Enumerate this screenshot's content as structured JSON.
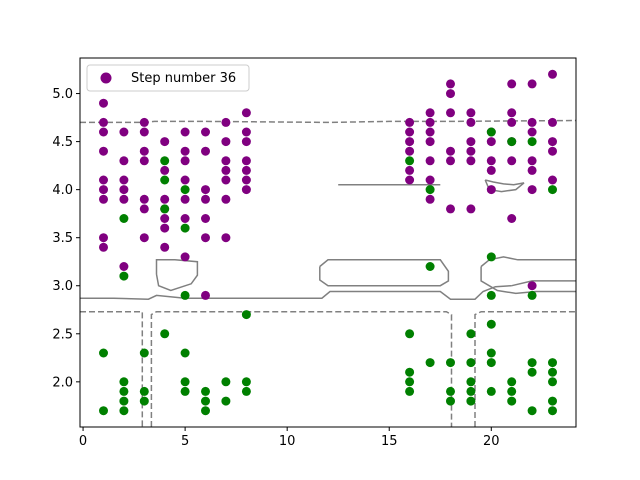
{
  "chart_data": {
    "type": "scatter",
    "legend": {
      "label": "Step number 36",
      "placement": "top-left"
    },
    "xlim": [
      -0.15,
      24.15
    ],
    "ylim": [
      1.53,
      5.37
    ],
    "xticks": [
      0,
      5,
      10,
      15,
      20
    ],
    "yticks": [
      2.0,
      2.5,
      3.0,
      3.5,
      4.0,
      4.5,
      5.0
    ],
    "ytick_labels": [
      "2.0",
      "2.5",
      "3.0",
      "3.5",
      "4.0",
      "4.5",
      "5.0"
    ],
    "colors": {
      "class_a": "#800080",
      "class_b": "#008000",
      "contour": "#808080",
      "axes": "#000000"
    },
    "series": [
      {
        "color_key": "class_a",
        "points": [
          [
            1,
            4.9
          ],
          [
            1,
            4.7
          ],
          [
            1,
            4.6
          ],
          [
            1,
            4.4
          ],
          [
            1,
            4.1
          ],
          [
            1,
            4.0
          ],
          [
            1,
            3.9
          ],
          [
            1,
            3.5
          ],
          [
            1,
            3.4
          ],
          [
            2,
            4.6
          ],
          [
            2,
            4.3
          ],
          [
            2,
            4.1
          ],
          [
            2,
            4.0
          ],
          [
            2,
            3.9
          ],
          [
            2,
            3.2
          ],
          [
            3,
            4.7
          ],
          [
            3,
            4.6
          ],
          [
            3,
            4.4
          ],
          [
            3,
            4.3
          ],
          [
            3,
            3.9
          ],
          [
            3,
            3.8
          ],
          [
            3,
            3.5
          ],
          [
            4,
            4.5
          ],
          [
            4,
            4.2
          ],
          [
            4,
            3.9
          ],
          [
            4,
            3.8
          ],
          [
            4,
            3.7
          ],
          [
            4,
            3.6
          ],
          [
            4,
            3.4
          ],
          [
            5,
            4.6
          ],
          [
            5,
            4.4
          ],
          [
            5,
            4.3
          ],
          [
            5,
            4.1
          ],
          [
            5,
            3.9
          ],
          [
            5,
            3.7
          ],
          [
            5,
            3.3
          ],
          [
            6,
            4.6
          ],
          [
            6,
            4.4
          ],
          [
            6,
            4.0
          ],
          [
            6,
            3.9
          ],
          [
            6,
            3.7
          ],
          [
            6,
            3.5
          ],
          [
            6,
            2.9
          ],
          [
            7,
            4.7
          ],
          [
            7,
            4.5
          ],
          [
            7,
            4.3
          ],
          [
            7,
            4.2
          ],
          [
            7,
            4.1
          ],
          [
            7,
            3.9
          ],
          [
            7,
            3.5
          ],
          [
            8,
            4.8
          ],
          [
            8,
            4.6
          ],
          [
            8,
            4.5
          ],
          [
            8,
            4.3
          ],
          [
            8,
            4.2
          ],
          [
            8,
            4.1
          ],
          [
            8,
            4.0
          ],
          [
            16,
            4.7
          ],
          [
            16,
            4.6
          ],
          [
            16,
            4.5
          ],
          [
            16,
            4.4
          ],
          [
            16,
            4.2
          ],
          [
            16,
            4.1
          ],
          [
            17,
            4.8
          ],
          [
            17,
            4.7
          ],
          [
            17,
            4.6
          ],
          [
            17,
            4.5
          ],
          [
            17,
            4.3
          ],
          [
            17,
            4.1
          ],
          [
            17,
            3.9
          ],
          [
            18,
            5.1
          ],
          [
            18,
            5.0
          ],
          [
            18,
            4.8
          ],
          [
            18,
            4.4
          ],
          [
            18,
            4.3
          ],
          [
            18,
            3.8
          ],
          [
            19,
            4.8
          ],
          [
            19,
            4.7
          ],
          [
            19,
            4.5
          ],
          [
            19,
            4.4
          ],
          [
            19,
            4.3
          ],
          [
            19,
            3.8
          ],
          [
            20,
            4.6
          ],
          [
            20,
            4.5
          ],
          [
            20,
            4.3
          ],
          [
            20,
            4.2
          ],
          [
            20,
            4.0
          ],
          [
            21,
            5.1
          ],
          [
            21,
            4.8
          ],
          [
            21,
            4.7
          ],
          [
            21,
            4.5
          ],
          [
            21,
            4.3
          ],
          [
            21,
            3.7
          ],
          [
            22,
            5.1
          ],
          [
            22,
            4.7
          ],
          [
            22,
            4.6
          ],
          [
            22,
            4.3
          ],
          [
            22,
            4.2
          ],
          [
            22,
            4.0
          ],
          [
            22,
            3.0
          ],
          [
            23,
            5.2
          ],
          [
            23,
            4.7
          ],
          [
            23,
            4.5
          ],
          [
            23,
            4.4
          ],
          [
            23,
            4.1
          ]
        ]
      },
      {
        "color_key": "class_b",
        "points": [
          [
            1,
            2.3
          ],
          [
            1,
            1.7
          ],
          [
            2,
            3.7
          ],
          [
            2,
            3.1
          ],
          [
            2,
            2.0
          ],
          [
            2,
            1.9
          ],
          [
            2,
            1.8
          ],
          [
            2,
            1.7
          ],
          [
            3,
            2.3
          ],
          [
            3,
            1.9
          ],
          [
            3,
            1.8
          ],
          [
            4,
            4.3
          ],
          [
            4,
            4.1
          ],
          [
            4,
            3.8
          ],
          [
            4,
            2.5
          ],
          [
            5,
            4.0
          ],
          [
            5,
            3.6
          ],
          [
            5,
            2.9
          ],
          [
            5,
            2.3
          ],
          [
            5,
            2.0
          ],
          [
            5,
            1.9
          ],
          [
            6,
            1.9
          ],
          [
            6,
            1.8
          ],
          [
            6,
            1.7
          ],
          [
            7,
            2.0
          ],
          [
            7,
            1.8
          ],
          [
            8,
            2.7
          ],
          [
            8,
            2.0
          ],
          [
            8,
            1.9
          ],
          [
            16,
            4.3
          ],
          [
            16,
            2.5
          ],
          [
            16,
            2.1
          ],
          [
            16,
            2.0
          ],
          [
            16,
            1.9
          ],
          [
            17,
            4.0
          ],
          [
            17,
            3.2
          ],
          [
            17,
            2.2
          ],
          [
            18,
            2.2
          ],
          [
            18,
            1.9
          ],
          [
            18,
            1.8
          ],
          [
            19,
            2.5
          ],
          [
            19,
            2.2
          ],
          [
            19,
            2.0
          ],
          [
            19,
            1.9
          ],
          [
            19,
            1.8
          ],
          [
            20,
            4.6
          ],
          [
            20,
            3.3
          ],
          [
            20,
            2.9
          ],
          [
            20,
            2.6
          ],
          [
            20,
            2.3
          ],
          [
            20,
            2.2
          ],
          [
            20,
            1.9
          ],
          [
            21,
            4.5
          ],
          [
            21,
            2.0
          ],
          [
            21,
            1.9
          ],
          [
            21,
            1.8
          ],
          [
            22,
            4.5
          ],
          [
            22,
            2.9
          ],
          [
            22,
            2.2
          ],
          [
            22,
            2.1
          ],
          [
            22,
            1.7
          ],
          [
            23,
            4.0
          ],
          [
            23,
            2.2
          ],
          [
            23,
            2.1
          ],
          [
            23,
            2.0
          ],
          [
            23,
            1.8
          ],
          [
            23,
            1.7
          ]
        ]
      }
    ],
    "contours": [
      {
        "style": "dashed",
        "points": [
          [
            -0.15,
            4.7
          ],
          [
            3,
            4.7
          ],
          [
            3.5,
            4.71
          ],
          [
            6,
            4.71
          ],
          [
            12,
            4.7
          ],
          [
            15,
            4.71
          ],
          [
            18,
            4.71
          ],
          [
            24.15,
            4.72
          ]
        ]
      },
      {
        "style": "solid",
        "points": [
          [
            12.5,
            4.05
          ],
          [
            17.5,
            4.05
          ]
        ]
      },
      {
        "style": "solid",
        "points": [
          [
            19.7,
            4.1
          ],
          [
            20.1,
            4.08
          ],
          [
            20.6,
            4.06
          ],
          [
            21.1,
            4.05
          ],
          [
            21.6,
            4.07
          ],
          [
            21.2,
            4.0
          ],
          [
            20.5,
            3.98
          ],
          [
            19.9,
            4.0
          ],
          [
            19.7,
            4.1
          ]
        ]
      },
      {
        "style": "solid",
        "points": [
          [
            3.6,
            3.12
          ],
          [
            3.7,
            3.0
          ],
          [
            4.3,
            2.95
          ],
          [
            5.3,
            3.02
          ],
          [
            5.6,
            3.11
          ],
          [
            5.6,
            3.25
          ],
          [
            4.5,
            3.27
          ],
          [
            3.6,
            3.27
          ],
          [
            3.6,
            3.12
          ]
        ]
      },
      {
        "style": "solid",
        "points": [
          [
            11.6,
            3.2
          ],
          [
            12.0,
            3.27
          ],
          [
            17.5,
            3.27
          ],
          [
            17.9,
            3.15
          ],
          [
            17.9,
            3.05
          ],
          [
            17.5,
            3.0
          ],
          [
            12.0,
            3.0
          ],
          [
            11.6,
            3.06
          ],
          [
            11.6,
            3.2
          ]
        ]
      },
      {
        "style": "solid",
        "points": [
          [
            19.5,
            3.2
          ],
          [
            19.9,
            3.27
          ],
          [
            20.6,
            3.3
          ],
          [
            21.3,
            3.27
          ],
          [
            24.15,
            3.27
          ]
        ]
      },
      {
        "style": "solid",
        "points": [
          [
            19.5,
            3.2
          ],
          [
            19.5,
            3.05
          ],
          [
            20.3,
            2.95
          ],
          [
            21.2,
            2.92
          ],
          [
            22.2,
            2.94
          ],
          [
            24.15,
            2.94
          ]
        ]
      },
      {
        "style": "solid",
        "points": [
          [
            21.0,
            3.0
          ],
          [
            22.0,
            3.05
          ],
          [
            24.15,
            3.05
          ]
        ]
      },
      {
        "style": "solid",
        "points": [
          [
            -0.15,
            2.87
          ],
          [
            1.5,
            2.87
          ],
          [
            3.2,
            2.86
          ],
          [
            3.6,
            2.9
          ],
          [
            5.0,
            2.87
          ],
          [
            11.7,
            2.87
          ],
          [
            12.1,
            2.94
          ],
          [
            17.5,
            2.94
          ],
          [
            18.0,
            2.86
          ],
          [
            19.2,
            2.86
          ],
          [
            19.6,
            2.94
          ],
          [
            20.2,
            2.99
          ],
          [
            21.0,
            3.0
          ]
        ]
      },
      {
        "style": "dashed",
        "points": [
          [
            -0.15,
            2.73
          ],
          [
            2.9,
            2.73
          ],
          [
            2.9,
            1.53
          ]
        ]
      },
      {
        "style": "dashed",
        "points": [
          [
            3.35,
            1.53
          ],
          [
            3.35,
            2.7
          ],
          [
            3.6,
            2.73
          ],
          [
            17.8,
            2.73
          ],
          [
            18.05,
            2.7
          ],
          [
            18.05,
            1.53
          ]
        ]
      },
      {
        "style": "dashed",
        "points": [
          [
            19.2,
            1.53
          ],
          [
            19.2,
            2.7
          ],
          [
            19.5,
            2.73
          ],
          [
            24.15,
            2.73
          ]
        ]
      }
    ]
  }
}
